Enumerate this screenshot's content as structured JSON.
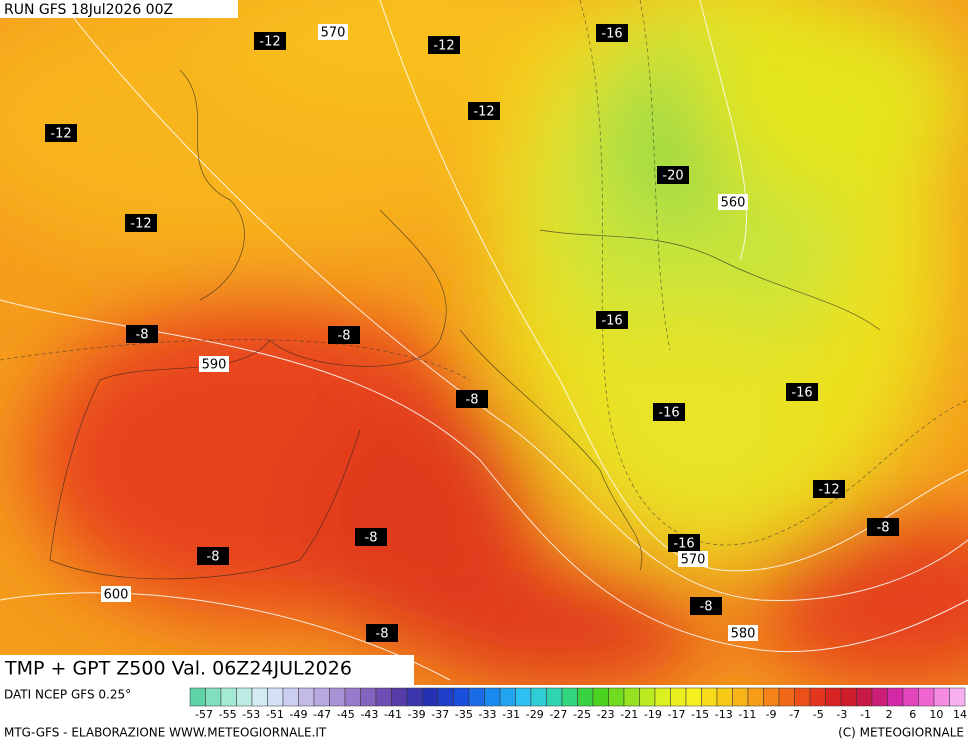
{
  "header": {
    "run": "RUN GFS 18Jul2026 00Z"
  },
  "map": {
    "temperature_labels": [
      -12,
      -12,
      -16,
      -12,
      -12,
      -12,
      -20,
      -8,
      -8,
      -16,
      -16,
      -16,
      -8,
      -12,
      -8,
      -16,
      -8,
      -8,
      -8,
      -8
    ],
    "geopotential_labels": [
      570,
      560,
      590,
      600,
      570,
      580
    ]
  },
  "footer": {
    "title": "TMP + GPT Z500 Val. 06Z24JUL2026",
    "source": "DATI NCEP GFS 0.25°",
    "credit": "MTG-GFS - ELABORAZIONE WWW.METEOGIORNALE.IT",
    "copyright": "(C) METEOGIORNALE"
  },
  "legend": {
    "labels": [
      -57,
      -55,
      -53,
      -51,
      -49,
      -47,
      -45,
      -43,
      -41,
      -39,
      -37,
      -35,
      -33,
      -31,
      -29,
      -27,
      -25,
      -23,
      -21,
      -19,
      -17,
      -15,
      -13,
      -11,
      -9,
      -7,
      -5,
      -3,
      -1,
      2,
      6,
      10,
      14
    ]
  }
}
